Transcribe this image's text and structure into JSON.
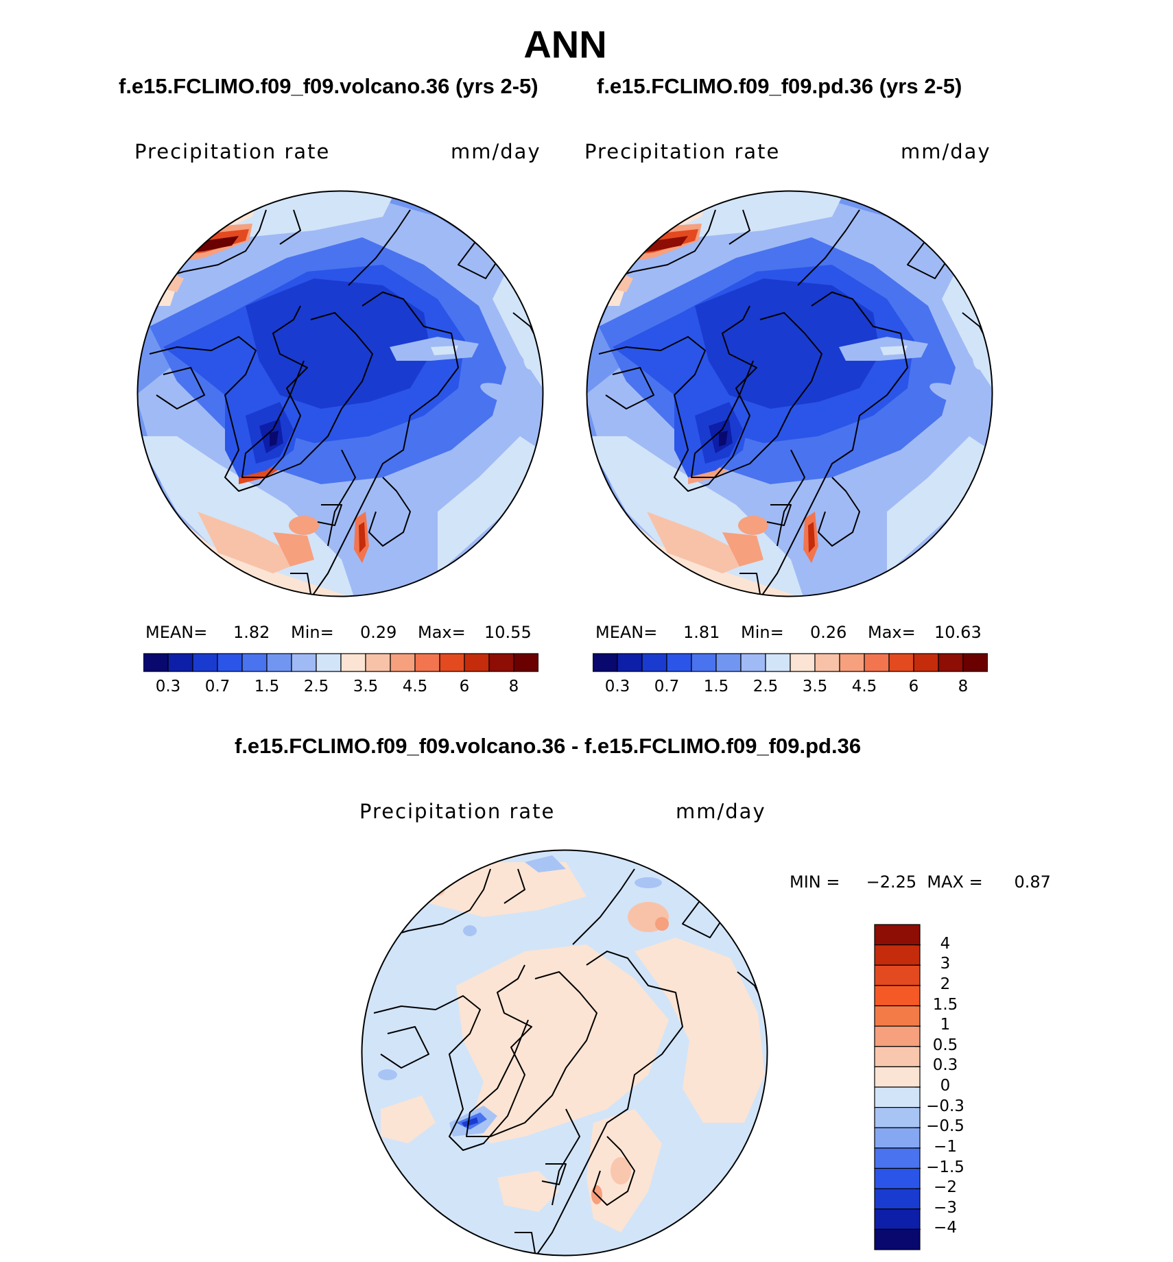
{
  "figure": {
    "season": "ANN",
    "diff_title": "f.e15.FCLIMO.f09_f09.volcano.36 - f.e15.FCLIMO.f09_f09.pd.36"
  },
  "panels": [
    {
      "case_title": "f.e15.FCLIMO.f09_f09.volcano.36 (yrs 2-5)",
      "variable": "Precipitation  rate",
      "units": "mm/day",
      "mean_label": "MEAN=",
      "mean_value": "1.82",
      "min_label": "Min=",
      "min_value": "0.29",
      "max_label": "Max=",
      "max_value": "10.55"
    },
    {
      "case_title": "f.e15.FCLIMO.f09_f09.pd.36 (yrs 2-5)",
      "variable": "Precipitation  rate",
      "units": "mm/day",
      "mean_label": "MEAN=",
      "mean_value": "1.81",
      "min_label": "Min=",
      "min_value": "0.26",
      "max_label": "Max=",
      "max_value": "10.63"
    }
  ],
  "diff_panel": {
    "variable": "Precipitation  rate",
    "units": "mm/day",
    "minmax_text": "MIN =     −2.25  MAX =      0.87"
  },
  "chart_data": [
    {
      "type": "heatmap",
      "projection": "north polar stereographic",
      "title": "f.e15.FCLIMO.f09_f09.volcano.36 (yrs 2-5)",
      "variable": "Precipitation rate",
      "units": "mm/day",
      "mean": 1.82,
      "min": 0.29,
      "max": 10.55,
      "colorbar_levels": [
        0.3,
        0.5,
        0.7,
        1,
        1.5,
        2,
        2.5,
        3,
        3.5,
        4,
        4.5,
        5,
        6,
        7,
        8
      ],
      "colorbar_tick_labels": [
        "0.3",
        "0.7",
        "1.5",
        "2.5",
        "3.5",
        "4.5",
        "6",
        "8"
      ],
      "colors": [
        "#08086e",
        "#0d1ea8",
        "#1a3bd0",
        "#2a55e8",
        "#4a73ef",
        "#7196f2",
        "#a0baf5",
        "#d2e4f8",
        "#fbe4d4",
        "#f8c2a8",
        "#f6a07e",
        "#f27550",
        "#e34a20",
        "#c42c0c",
        "#8e0d04",
        "#6a0000"
      ]
    },
    {
      "type": "heatmap",
      "projection": "north polar stereographic",
      "title": "f.e15.FCLIMO.f09_f09.pd.36 (yrs 2-5)",
      "variable": "Precipitation rate",
      "units": "mm/day",
      "mean": 1.81,
      "min": 0.26,
      "max": 10.63,
      "colorbar_levels": [
        0.3,
        0.5,
        0.7,
        1,
        1.5,
        2,
        2.5,
        3,
        3.5,
        4,
        4.5,
        5,
        6,
        7,
        8
      ],
      "colorbar_tick_labels": [
        "0.3",
        "0.7",
        "1.5",
        "2.5",
        "3.5",
        "4.5",
        "6",
        "8"
      ],
      "colors": [
        "#08086e",
        "#0d1ea8",
        "#1a3bd0",
        "#2a55e8",
        "#4a73ef",
        "#7196f2",
        "#a0baf5",
        "#d2e4f8",
        "#fbe4d4",
        "#f8c2a8",
        "#f6a07e",
        "#f27550",
        "#e34a20",
        "#c42c0c",
        "#8e0d04",
        "#6a0000"
      ]
    },
    {
      "type": "heatmap",
      "projection": "north polar stereographic",
      "title": "f.e15.FCLIMO.f09_f09.volcano.36 - f.e15.FCLIMO.f09_f09.pd.36",
      "variable": "Precipitation rate",
      "units": "mm/day",
      "min": -2.25,
      "max": 0.87,
      "colorbar_levels": [
        4,
        3,
        2,
        1.5,
        1,
        0.5,
        0.3,
        0,
        -0.3,
        -0.5,
        -1,
        -1.5,
        -2,
        -3,
        -4
      ],
      "colorbar_tick_labels": [
        "4",
        "3",
        "2",
        "1.5",
        "1",
        "0.5",
        "0.3",
        "0",
        "−0.3",
        "−0.5",
        "−1",
        "−1.5",
        "−2",
        "−3",
        "−4"
      ],
      "colors": [
        "#8e0d04",
        "#c42c0c",
        "#e34a20",
        "#f55a26",
        "#f27b48",
        "#f6a07e",
        "#f9c7ad",
        "#fbe4d4",
        "#d2e4f8",
        "#a8c4f5",
        "#86a8f2",
        "#4a73ef",
        "#2a55e8",
        "#1a3bd0",
        "#0d1ea8",
        "#08086e"
      ]
    }
  ]
}
